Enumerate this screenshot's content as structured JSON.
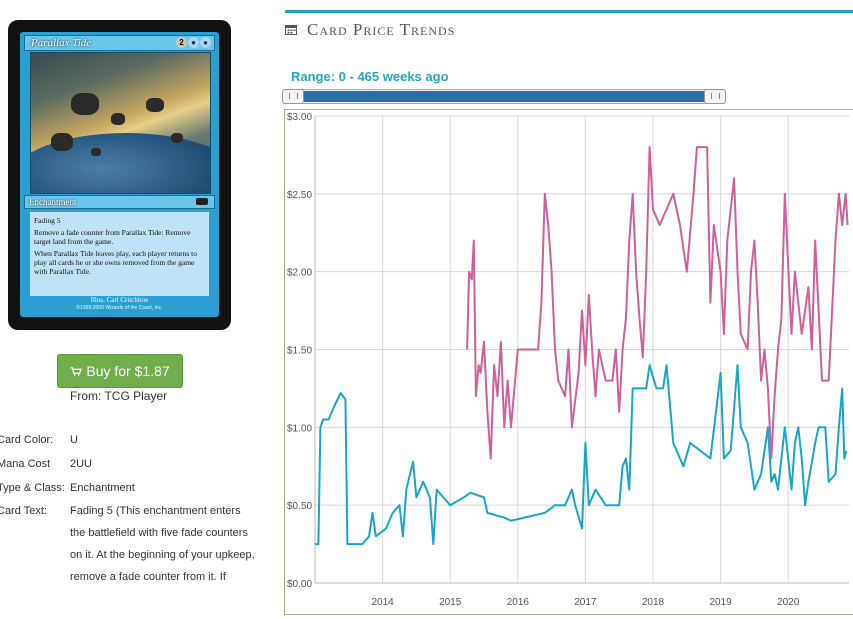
{
  "card": {
    "name": "Parallax Tide",
    "cost_generic": "2",
    "type_line": "Enchantment",
    "rules_text": [
      "Fading 5",
      "Remove a fade counter from Parallax Tide: Remove target land from the game.",
      "When Parallax Tide leaves play, each player returns to play all cards he or she owns removed from the game with Parallax Tide."
    ],
    "artist": "Illus. Carl Critchlow",
    "copyright": "©1999-2000 Wizards of the Coast, Inc."
  },
  "buy": {
    "label": "Buy for $1.87",
    "from": "From: TCG Player"
  },
  "details": [
    {
      "label": "Card Color:",
      "value": "U"
    },
    {
      "label": "Mana Cost",
      "value": "2UU"
    },
    {
      "label": "Type & Class:",
      "value": "Enchantment"
    },
    {
      "label": "Card Text:",
      "value": "Fading 5 (This enchantment enters the battlefield with five fade counters on it. At the beginning of your upkeep, remove a fade counter from it. If"
    }
  ],
  "trends": {
    "title": "Card Price Trends",
    "range_label": "Range: 0 - 465 weeks ago",
    "accent": "#1aa6b7"
  },
  "chart_data": {
    "type": "line",
    "title": "",
    "xlabel": "",
    "ylabel": "",
    "ylim": [
      0,
      3
    ],
    "xlim": [
      2013.0,
      2020.9
    ],
    "x_ticks": [
      2014,
      2015,
      2016,
      2017,
      2018,
      2019,
      2020
    ],
    "y_ticks": [
      "$0.00",
      "$0.50",
      "$1.00",
      "$1.50",
      "$2.00",
      "$2.50",
      "$3.00"
    ],
    "y_tick_values": [
      0,
      0.5,
      1,
      1.5,
      2,
      2.5,
      3
    ],
    "grid": true,
    "series": [
      {
        "color": "#d0609a",
        "points": [
          [
            2015.25,
            1.5
          ],
          [
            2015.28,
            2.0
          ],
          [
            2015.32,
            1.95
          ],
          [
            2015.35,
            2.2
          ],
          [
            2015.38,
            1.2
          ],
          [
            2015.42,
            1.4
          ],
          [
            2015.45,
            1.35
          ],
          [
            2015.5,
            1.55
          ],
          [
            2015.55,
            1.1
          ],
          [
            2015.6,
            0.8
          ],
          [
            2015.65,
            1.4
          ],
          [
            2015.7,
            1.2
          ],
          [
            2015.75,
            1.55
          ],
          [
            2015.8,
            1.0
          ],
          [
            2015.85,
            1.3
          ],
          [
            2015.9,
            1.0
          ],
          [
            2016.0,
            1.5
          ],
          [
            2016.2,
            1.5
          ],
          [
            2016.3,
            1.5
          ],
          [
            2016.35,
            1.8
          ],
          [
            2016.4,
            2.5
          ],
          [
            2016.45,
            2.3
          ],
          [
            2016.5,
            2.0
          ],
          [
            2016.55,
            1.5
          ],
          [
            2016.6,
            1.3
          ],
          [
            2016.7,
            1.2
          ],
          [
            2016.75,
            1.5
          ],
          [
            2016.8,
            1.0
          ],
          [
            2016.9,
            1.35
          ],
          [
            2016.95,
            1.75
          ],
          [
            2017.0,
            1.4
          ],
          [
            2017.05,
            1.85
          ],
          [
            2017.1,
            1.5
          ],
          [
            2017.15,
            1.2
          ],
          [
            2017.2,
            1.5
          ],
          [
            2017.3,
            1.3
          ],
          [
            2017.4,
            1.3
          ],
          [
            2017.45,
            1.5
          ],
          [
            2017.5,
            1.1
          ],
          [
            2017.55,
            1.5
          ],
          [
            2017.6,
            1.7
          ],
          [
            2017.65,
            2.2
          ],
          [
            2017.7,
            2.5
          ],
          [
            2017.75,
            2.0
          ],
          [
            2017.8,
            1.7
          ],
          [
            2017.85,
            1.45
          ],
          [
            2017.9,
            2.0
          ],
          [
            2017.95,
            2.8
          ],
          [
            2018.0,
            2.4
          ],
          [
            2018.1,
            2.3
          ],
          [
            2018.2,
            2.4
          ],
          [
            2018.3,
            2.5
          ],
          [
            2018.4,
            2.3
          ],
          [
            2018.5,
            2.0
          ],
          [
            2018.6,
            2.5
          ],
          [
            2018.65,
            2.8
          ],
          [
            2018.8,
            2.8
          ],
          [
            2018.85,
            1.8
          ],
          [
            2018.9,
            2.3
          ],
          [
            2019.0,
            2.0
          ],
          [
            2019.05,
            1.6
          ],
          [
            2019.1,
            2.2
          ],
          [
            2019.2,
            2.6
          ],
          [
            2019.25,
            2.0
          ],
          [
            2019.3,
            1.6
          ],
          [
            2019.4,
            1.5
          ],
          [
            2019.45,
            2.0
          ],
          [
            2019.5,
            2.2
          ],
          [
            2019.55,
            1.8
          ],
          [
            2019.6,
            1.3
          ],
          [
            2019.65,
            1.5
          ],
          [
            2019.7,
            1.25
          ],
          [
            2019.75,
            0.8
          ],
          [
            2019.8,
            1.2
          ],
          [
            2019.85,
            1.5
          ],
          [
            2019.9,
            1.7
          ],
          [
            2019.95,
            2.5
          ],
          [
            2020.05,
            1.6
          ],
          [
            2020.1,
            2.0
          ],
          [
            2020.15,
            1.8
          ],
          [
            2020.2,
            1.6
          ],
          [
            2020.3,
            1.9
          ],
          [
            2020.35,
            1.5
          ],
          [
            2020.4,
            2.2
          ],
          [
            2020.5,
            1.3
          ],
          [
            2020.6,
            1.3
          ],
          [
            2020.7,
            2.2
          ],
          [
            2020.75,
            2.5
          ],
          [
            2020.8,
            2.3
          ],
          [
            2020.85,
            2.5
          ],
          [
            2020.88,
            2.3
          ]
        ]
      },
      {
        "color": "#1aa6c7",
        "points": [
          [
            2013.0,
            0.25
          ],
          [
            2013.05,
            0.25
          ],
          [
            2013.08,
            1.0
          ],
          [
            2013.12,
            1.05
          ],
          [
            2013.2,
            1.05
          ],
          [
            2013.3,
            1.15
          ],
          [
            2013.38,
            1.22
          ],
          [
            2013.45,
            1.18
          ],
          [
            2013.48,
            0.25
          ],
          [
            2013.7,
            0.25
          ],
          [
            2013.8,
            0.3
          ],
          [
            2013.85,
            0.45
          ],
          [
            2013.9,
            0.3
          ],
          [
            2014.05,
            0.35
          ],
          [
            2014.15,
            0.45
          ],
          [
            2014.25,
            0.5
          ],
          [
            2014.3,
            0.3
          ],
          [
            2014.35,
            0.6
          ],
          [
            2014.45,
            0.78
          ],
          [
            2014.5,
            0.55
          ],
          [
            2014.6,
            0.65
          ],
          [
            2014.7,
            0.55
          ],
          [
            2014.75,
            0.25
          ],
          [
            2014.8,
            0.6
          ],
          [
            2014.9,
            0.55
          ],
          [
            2015.0,
            0.5
          ],
          [
            2015.2,
            0.55
          ],
          [
            2015.3,
            0.58
          ],
          [
            2015.5,
            0.55
          ],
          [
            2015.55,
            0.45
          ],
          [
            2015.8,
            0.42
          ],
          [
            2015.9,
            0.4
          ],
          [
            2016.1,
            0.42
          ],
          [
            2016.4,
            0.45
          ],
          [
            2016.55,
            0.5
          ],
          [
            2016.7,
            0.5
          ],
          [
            2016.8,
            0.6
          ],
          [
            2016.85,
            0.5
          ],
          [
            2016.95,
            0.35
          ],
          [
            2017.0,
            0.9
          ],
          [
            2017.05,
            0.5
          ],
          [
            2017.15,
            0.6
          ],
          [
            2017.3,
            0.5
          ],
          [
            2017.5,
            0.5
          ],
          [
            2017.55,
            0.75
          ],
          [
            2017.6,
            0.8
          ],
          [
            2017.65,
            0.6
          ],
          [
            2017.7,
            1.25
          ],
          [
            2017.9,
            1.25
          ],
          [
            2017.95,
            1.4
          ],
          [
            2018.05,
            1.25
          ],
          [
            2018.15,
            1.25
          ],
          [
            2018.2,
            1.4
          ],
          [
            2018.3,
            0.9
          ],
          [
            2018.4,
            0.8
          ],
          [
            2018.45,
            0.75
          ],
          [
            2018.55,
            0.9
          ],
          [
            2018.7,
            0.85
          ],
          [
            2018.85,
            0.8
          ],
          [
            2019.0,
            1.35
          ],
          [
            2019.05,
            0.8
          ],
          [
            2019.15,
            0.85
          ],
          [
            2019.25,
            1.4
          ],
          [
            2019.3,
            1.0
          ],
          [
            2019.4,
            0.9
          ],
          [
            2019.5,
            0.6
          ],
          [
            2019.6,
            0.7
          ],
          [
            2019.7,
            1.0
          ],
          [
            2019.75,
            0.65
          ],
          [
            2019.8,
            0.7
          ],
          [
            2019.85,
            0.6
          ],
          [
            2019.95,
            1.0
          ],
          [
            2020.05,
            0.6
          ],
          [
            2020.1,
            0.9
          ],
          [
            2020.15,
            1.0
          ],
          [
            2020.2,
            0.8
          ],
          [
            2020.25,
            0.5
          ],
          [
            2020.3,
            0.65
          ],
          [
            2020.4,
            0.9
          ],
          [
            2020.45,
            1.0
          ],
          [
            2020.55,
            1.0
          ],
          [
            2020.6,
            0.65
          ],
          [
            2020.7,
            0.7
          ],
          [
            2020.75,
            1.0
          ],
          [
            2020.8,
            1.25
          ],
          [
            2020.83,
            0.8
          ],
          [
            2020.86,
            0.85
          ]
        ]
      }
    ]
  }
}
